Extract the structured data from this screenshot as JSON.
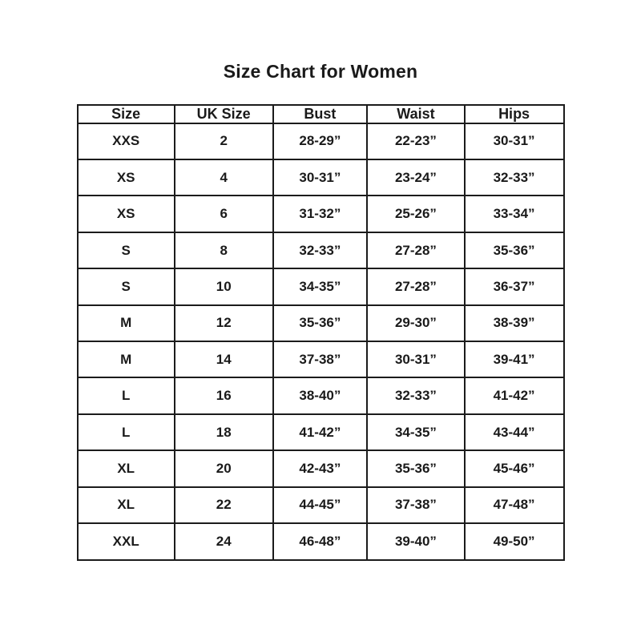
{
  "page": {
    "title": "Size Chart for Women"
  },
  "chart_data": {
    "type": "table",
    "title": "Size Chart for Women",
    "columns": [
      "Size",
      "UK Size",
      "Bust",
      "Waist",
      "Hips"
    ],
    "rows": [
      [
        "XXS",
        "2",
        "28-29”",
        "22-23”",
        "30-31”"
      ],
      [
        "XS",
        "4",
        "30-31”",
        "23-24”",
        "32-33”"
      ],
      [
        "XS",
        "6",
        "31-32”",
        "25-26”",
        "33-34”"
      ],
      [
        "S",
        "8",
        "32-33”",
        "27-28”",
        "35-36”"
      ],
      [
        "S",
        "10",
        "34-35”",
        "27-28”",
        "36-37”"
      ],
      [
        "M",
        "12",
        "35-36”",
        "29-30”",
        "38-39”"
      ],
      [
        "M",
        "14",
        "37-38”",
        "30-31”",
        "39-41”"
      ],
      [
        "L",
        "16",
        "38-40”",
        "32-33”",
        "41-42”"
      ],
      [
        "L",
        "18",
        "41-42”",
        "34-35”",
        "43-44”"
      ],
      [
        "XL",
        "20",
        "42-43”",
        "35-36”",
        "45-46”"
      ],
      [
        "XL",
        "22",
        "44-45”",
        "37-38”",
        "47-48”"
      ],
      [
        "XXL",
        "24",
        "46-48”",
        "39-40”",
        "49-50”"
      ]
    ],
    "layout": {
      "grid": "all-borders",
      "header_position": "top",
      "text_align": "center"
    },
    "colors": {
      "border": "#1b1b1b",
      "text": "#1a1a1a",
      "background": "#ffffff"
    }
  }
}
